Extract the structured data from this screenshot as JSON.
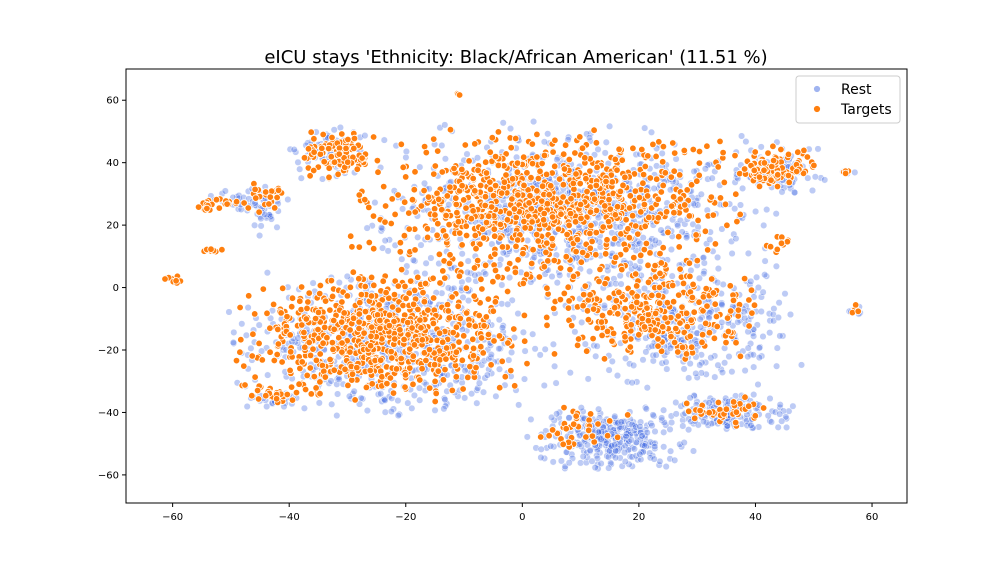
{
  "chart_data": {
    "type": "scatter",
    "title": "eICU stays 'Ethnicity: Black/African American' (11.51 %)",
    "xlabel": "",
    "ylabel": "",
    "xlim": [
      -68,
      66
    ],
    "ylim": [
      -69,
      70
    ],
    "xticks": [
      -60,
      -40,
      -20,
      0,
      20,
      40,
      60
    ],
    "yticks": [
      -60,
      -40,
      -20,
      0,
      20,
      40,
      60
    ],
    "xtick_labels": [
      "−60",
      "−40",
      "−20",
      "0",
      "20",
      "40",
      "60"
    ],
    "ytick_labels": [
      "−60",
      "−40",
      "−20",
      "0",
      "20",
      "40",
      "60"
    ],
    "grid": false,
    "legend": {
      "placement": "top-right"
    },
    "series": [
      {
        "name": "Rest",
        "color": "#4169e1",
        "opacity": 0.35,
        "clusters": [
          {
            "cx": 8,
            "cy": 24,
            "rx": 34,
            "ry": 28,
            "n": 900
          },
          {
            "cx": -22,
            "cy": -18,
            "rx": 27,
            "ry": 22,
            "n": 700
          },
          {
            "cx": 28,
            "cy": -12,
            "rx": 20,
            "ry": 20,
            "n": 350
          },
          {
            "cx": 15,
            "cy": -48,
            "rx": 14,
            "ry": 10,
            "n": 320
          },
          {
            "cx": 35,
            "cy": -40,
            "rx": 11,
            "ry": 6,
            "n": 160
          },
          {
            "cx": -33,
            "cy": 43,
            "rx": 7,
            "ry": 8,
            "n": 80
          },
          {
            "cx": 44,
            "cy": 37,
            "rx": 8,
            "ry": 8,
            "n": 90
          },
          {
            "cx": -48,
            "cy": 28,
            "rx": 8,
            "ry": 4,
            "n": 40
          },
          {
            "cx": -42,
            "cy": -36,
            "rx": 5,
            "ry": 3,
            "n": 30
          },
          {
            "cx": -44,
            "cy": 25,
            "rx": 4,
            "ry": 8,
            "n": 30
          },
          {
            "cx": 57,
            "cy": -7,
            "rx": 2,
            "ry": 2,
            "n": 8
          },
          {
            "cx": 55,
            "cy": 37,
            "rx": 2,
            "ry": 1,
            "n": 6
          }
        ]
      },
      {
        "name": "Targets",
        "color": "#ff7f0e",
        "opacity": 1,
        "clusters": [
          {
            "cx": 4,
            "cy": 26,
            "rx": 32,
            "ry": 24,
            "n": 900
          },
          {
            "cx": -24,
            "cy": -16,
            "rx": 24,
            "ry": 20,
            "n": 750
          },
          {
            "cx": 22,
            "cy": -8,
            "rx": 18,
            "ry": 16,
            "n": 300
          },
          {
            "cx": -32,
            "cy": 43,
            "rx": 6,
            "ry": 8,
            "n": 110
          },
          {
            "cx": 43,
            "cy": 38,
            "rx": 7,
            "ry": 8,
            "n": 100
          },
          {
            "cx": -52,
            "cy": 27,
            "rx": 5,
            "ry": 3,
            "n": 25
          },
          {
            "cx": -44,
            "cy": 30,
            "rx": 4,
            "ry": 6,
            "n": 25
          },
          {
            "cx": -43,
            "cy": -35,
            "rx": 4,
            "ry": 3,
            "n": 18
          },
          {
            "cx": 35,
            "cy": -40,
            "rx": 8,
            "ry": 5,
            "n": 40
          },
          {
            "cx": 10,
            "cy": -45,
            "rx": 8,
            "ry": 8,
            "n": 35
          },
          {
            "cx": -60,
            "cy": 2,
            "rx": 1.5,
            "ry": 2,
            "n": 10
          },
          {
            "cx": -53,
            "cy": 12,
            "rx": 2,
            "ry": 1,
            "n": 8
          },
          {
            "cx": -11,
            "cy": 62,
            "rx": 1,
            "ry": 0.5,
            "n": 4
          },
          {
            "cx": 57,
            "cy": -7,
            "rx": 1.5,
            "ry": 1.5,
            "n": 5
          },
          {
            "cx": 55,
            "cy": 37,
            "rx": 1.5,
            "ry": 0.8,
            "n": 4
          },
          {
            "cx": 44,
            "cy": 14,
            "rx": 3,
            "ry": 3,
            "n": 12
          }
        ]
      }
    ]
  }
}
